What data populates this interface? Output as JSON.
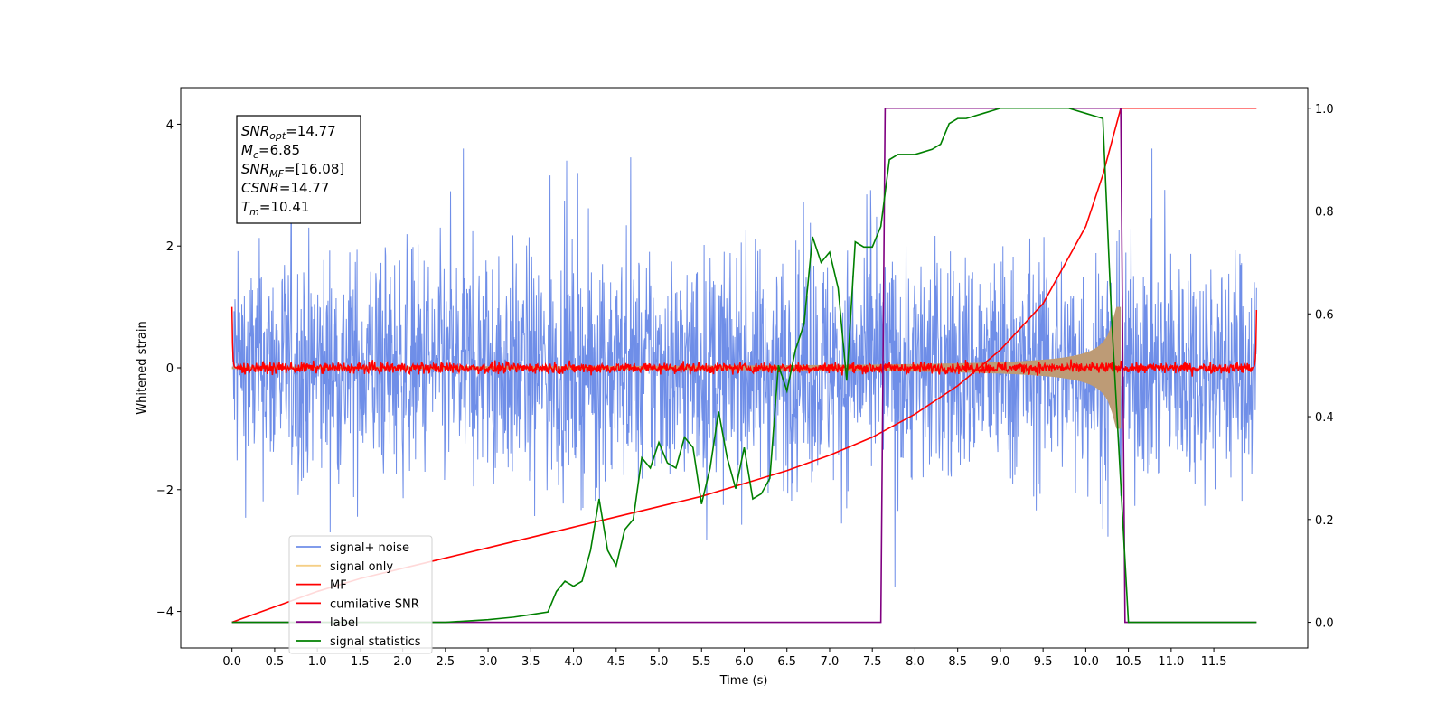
{
  "chart_data": {
    "type": "line",
    "xlabel": "Time (s)",
    "ylabel": "Whitened strain",
    "xlim": [
      -0.6,
      12.6
    ],
    "ylim": [
      -4.6,
      4.6
    ],
    "ylim_right": [
      -0.05,
      1.04
    ],
    "x_ticks": [
      "0.0",
      "0.5",
      "1.0",
      "1.5",
      "2.0",
      "2.5",
      "3.0",
      "3.5",
      "4.0",
      "4.5",
      "5.0",
      "5.5",
      "6.0",
      "6.5",
      "7.0",
      "7.5",
      "8.0",
      "8.5",
      "9.0",
      "9.5",
      "10.0",
      "10.5",
      "11.0",
      "11.5"
    ],
    "y_ticks": [
      "−4",
      "−2",
      "0",
      "2",
      "4"
    ],
    "y_ticks_right": [
      "0.0",
      "0.2",
      "0.4",
      "0.6",
      "0.8",
      "1.0"
    ],
    "annotation": {
      "lines": [
        {
          "sym": "SNR",
          "sub": "opt",
          "value": "=14.77"
        },
        {
          "sym": "M",
          "sub": "c",
          "value": "=6.85"
        },
        {
          "sym": "SNR",
          "sub": "MF",
          "value": "=[16.08]"
        },
        {
          "sym": "CSNR",
          "sub": "",
          "value": "=14.77"
        },
        {
          "sym": "T",
          "sub": "m",
          "value": "=10.41"
        }
      ]
    },
    "legend_position": "lower-left",
    "colors": {
      "signal_noise": "#6f8ee8",
      "signal_only": "#f5cf86",
      "signal_fill": "#bd9b76",
      "mf": "#ff0000",
      "csnr": "#ff0000",
      "label": "#800080",
      "stats": "#008000"
    },
    "series": [
      {
        "name": "signal+ noise",
        "axis": "left",
        "noise_band": {
          "x_start": 0.0,
          "x_end": 12.0,
          "typical_abs": 1.5,
          "peak_abs": 3.6
        }
      },
      {
        "name": "signal only",
        "axis": "left",
        "chirp": {
          "x_start": 0.0,
          "x_end": 10.41,
          "amplitude_start": 0.02,
          "amplitude_peak": 1.0
        }
      },
      {
        "name": "MF",
        "axis": "left",
        "level": 0.0,
        "spikes": {
          "x": [
            0.0,
            12.0
          ],
          "y": [
            1.0,
            0.95
          ]
        }
      },
      {
        "name": "cumilative SNR",
        "axis": "right",
        "x": [
          0.0,
          0.5,
          1.0,
          1.5,
          2.0,
          2.5,
          3.0,
          3.5,
          4.0,
          4.5,
          5.0,
          5.5,
          6.0,
          6.5,
          7.0,
          7.5,
          8.0,
          8.5,
          9.0,
          9.5,
          10.0,
          10.2,
          10.41,
          12.0
        ],
        "y": [
          0.0,
          0.03,
          0.06,
          0.085,
          0.105,
          0.125,
          0.145,
          0.165,
          0.185,
          0.205,
          0.225,
          0.245,
          0.27,
          0.295,
          0.325,
          0.36,
          0.405,
          0.46,
          0.53,
          0.62,
          0.77,
          0.87,
          1.0,
          1.0
        ]
      },
      {
        "name": "label",
        "axis": "right",
        "x": [
          0.0,
          7.6,
          7.65,
          10.41,
          10.46,
          12.0
        ],
        "y": [
          0.0,
          0.0,
          1.0,
          1.0,
          0.0,
          0.0
        ]
      },
      {
        "name": "signal statistics",
        "axis": "right",
        "x": [
          0.0,
          0.5,
          1.0,
          1.5,
          2.0,
          2.5,
          3.0,
          3.3,
          3.5,
          3.7,
          3.8,
          3.9,
          4.0,
          4.1,
          4.2,
          4.3,
          4.4,
          4.5,
          4.6,
          4.7,
          4.8,
          4.9,
          5.0,
          5.1,
          5.2,
          5.3,
          5.4,
          5.5,
          5.6,
          5.7,
          5.8,
          5.9,
          6.0,
          6.1,
          6.2,
          6.3,
          6.4,
          6.5,
          6.6,
          6.7,
          6.8,
          6.9,
          7.0,
          7.1,
          7.2,
          7.3,
          7.4,
          7.5,
          7.6,
          7.7,
          7.8,
          7.9,
          8.0,
          8.2,
          8.3,
          8.4,
          8.5,
          8.6,
          8.8,
          9.0,
          9.2,
          9.5,
          9.8,
          10.0,
          10.2,
          10.3,
          10.4,
          10.5,
          12.0
        ],
        "y": [
          0.0,
          0.0,
          0.0,
          0.0,
          0.0,
          0.0,
          0.005,
          0.01,
          0.015,
          0.02,
          0.06,
          0.08,
          0.07,
          0.08,
          0.14,
          0.24,
          0.14,
          0.11,
          0.18,
          0.2,
          0.32,
          0.3,
          0.35,
          0.31,
          0.3,
          0.36,
          0.34,
          0.23,
          0.3,
          0.41,
          0.32,
          0.26,
          0.34,
          0.24,
          0.25,
          0.28,
          0.5,
          0.45,
          0.53,
          0.58,
          0.75,
          0.7,
          0.72,
          0.65,
          0.47,
          0.74,
          0.73,
          0.73,
          0.77,
          0.9,
          0.91,
          0.91,
          0.91,
          0.92,
          0.93,
          0.97,
          0.98,
          0.98,
          0.99,
          1.0,
          1.0,
          1.0,
          1.0,
          0.99,
          0.98,
          0.6,
          0.3,
          0.0,
          0.0
        ]
      }
    ]
  }
}
